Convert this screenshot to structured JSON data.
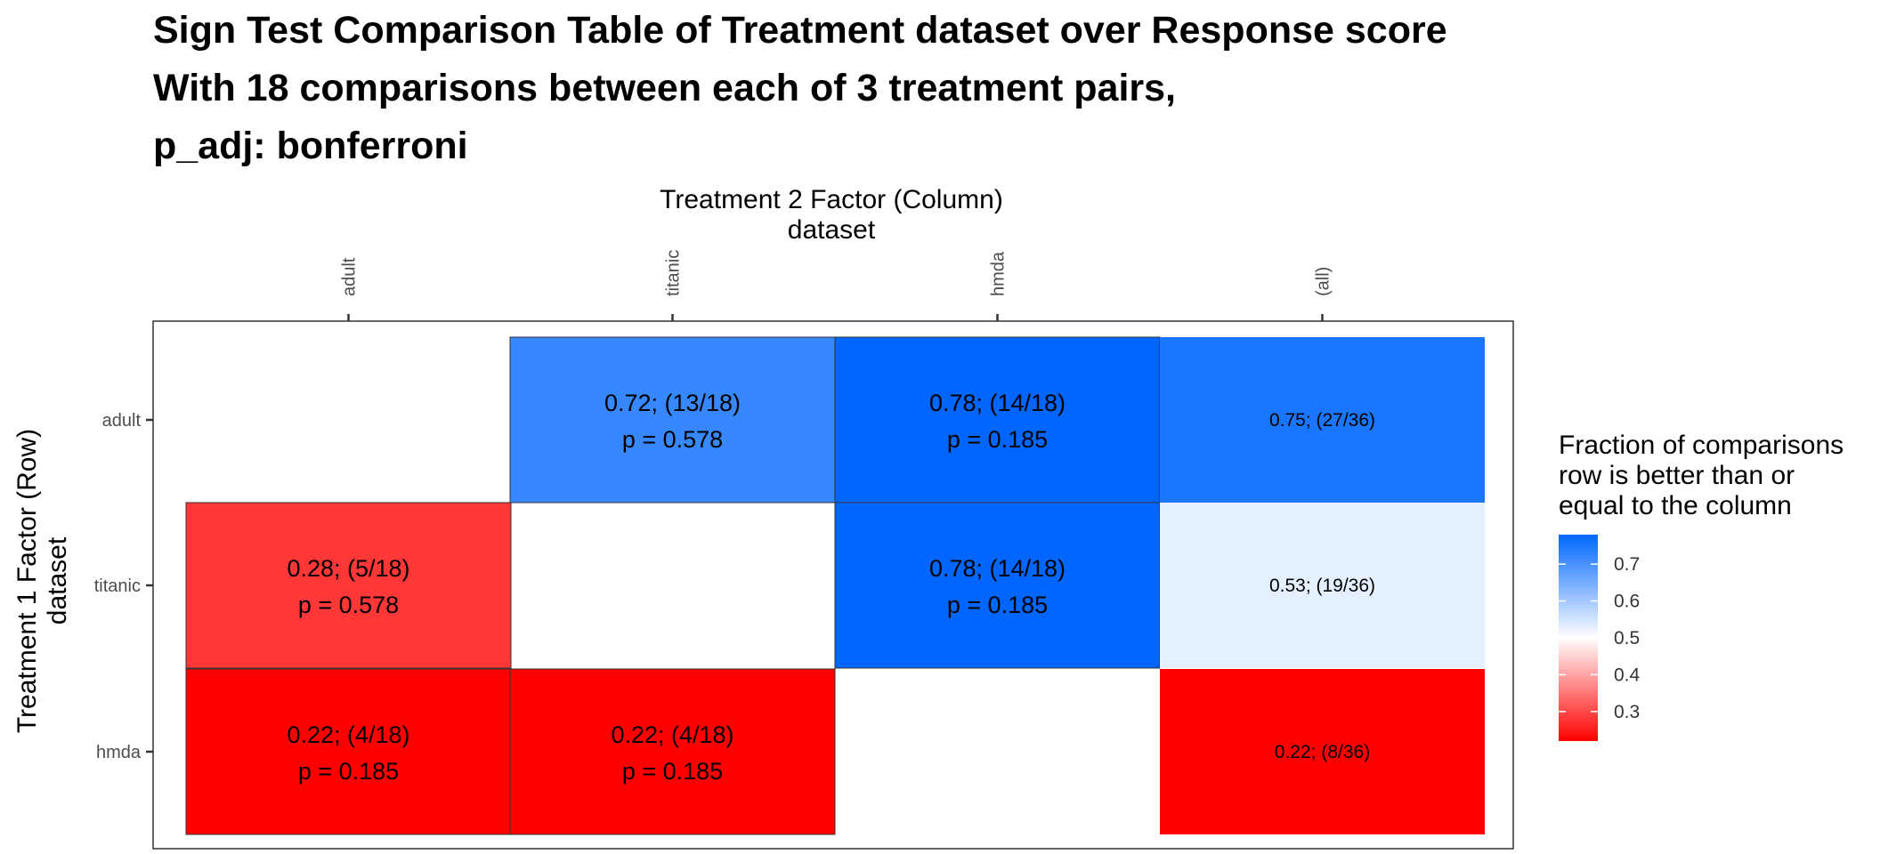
{
  "chart_data": {
    "type": "heatmap",
    "title_lines": [
      "Sign Test Comparison Table of Treatment dataset over Response score",
      "With 18 comparisons between each of 3 treatment pairs,",
      "p_adj: bonferroni"
    ],
    "xlabel_lines": [
      "Treatment 2 Factor (Column)",
      "dataset"
    ],
    "ylabel_lines": [
      "Treatment 1 Factor (Row)",
      "dataset"
    ],
    "columns": [
      "adult",
      "titanic",
      "hmda",
      "(all)"
    ],
    "rows": [
      "adult",
      "titanic",
      "hmda"
    ],
    "cells": [
      {
        "row": "adult",
        "col": "titanic",
        "value": 0.72,
        "text": [
          "0.72; (13/18)",
          "p = 0.578"
        ]
      },
      {
        "row": "adult",
        "col": "hmda",
        "value": 0.78,
        "text": [
          "0.78; (14/18)",
          "p = 0.185"
        ]
      },
      {
        "row": "adult",
        "col": "(all)",
        "value": 0.75,
        "text": [
          "0.75; (27/36)"
        ]
      },
      {
        "row": "titanic",
        "col": "adult",
        "value": 0.28,
        "text": [
          "0.28; (5/18)",
          "p = 0.578"
        ]
      },
      {
        "row": "titanic",
        "col": "hmda",
        "value": 0.78,
        "text": [
          "0.78; (14/18)",
          "p = 0.185"
        ]
      },
      {
        "row": "titanic",
        "col": "(all)",
        "value": 0.53,
        "text": [
          "0.53; (19/36)"
        ]
      },
      {
        "row": "hmda",
        "col": "adult",
        "value": 0.22,
        "text": [
          "0.22; (4/18)",
          "p = 0.185"
        ]
      },
      {
        "row": "hmda",
        "col": "titanic",
        "value": 0.22,
        "text": [
          "0.22; (4/18)",
          "p = 0.185"
        ]
      },
      {
        "row": "hmda",
        "col": "(all)",
        "value": 0.22,
        "text": [
          "0.22; (8/36)"
        ]
      }
    ],
    "legend": {
      "title_lines": [
        "Fraction of comparisons",
        "row is better than or",
        "equal to the column"
      ],
      "ticks": [
        0.7,
        0.6,
        0.5,
        0.4,
        0.3
      ],
      "range": [
        0.22,
        0.78
      ],
      "colors": {
        "low": "#ff0000",
        "mid": "#ffffff",
        "high": "#0066ff"
      },
      "midpoint": 0.5
    },
    "grid": false,
    "legend_position": "right"
  }
}
